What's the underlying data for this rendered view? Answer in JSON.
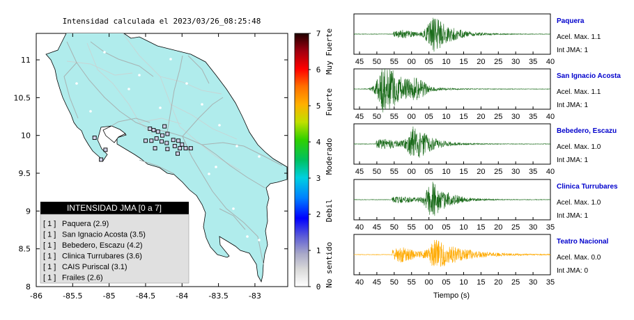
{
  "map": {
    "title": "Intensidad calculada el 2023/03/26_08:25:48",
    "xlim": [
      -86,
      -82.55
    ],
    "ylim": [
      8,
      11.35
    ],
    "xticks": [
      "-86",
      "-85.5",
      "-85",
      "-84.5",
      "-84",
      "-83.5",
      "-83"
    ],
    "yticks": [
      "8",
      "8.5",
      "9",
      "9.5",
      "10",
      "10.5",
      "11"
    ],
    "land_color": "#b0ecec",
    "legend": {
      "header": "INTENSIDAD JMA [0 a 7]",
      "items": [
        {
          "intensity": "[ 1 ]",
          "label": "Paquera (2.9)"
        },
        {
          "intensity": "[ 1 ]",
          "label": "San Ignacio Acosta (3.5)"
        },
        {
          "intensity": "[ 1 ]",
          "label": "Bebedero, Escazu (4.2)"
        },
        {
          "intensity": "[ 1 ]",
          "label": "Clinica Turrubares (3.6)"
        },
        {
          "intensity": "[ 1 ]",
          "label": "CAIS Puriscal (3.1)"
        },
        {
          "intensity": "[ 1 ]",
          "label": "Frailes (2.6)"
        }
      ]
    },
    "stations": [
      {
        "lon": -84.44,
        "lat": 10.09
      },
      {
        "lon": -84.39,
        "lat": 10.07
      },
      {
        "lon": -84.33,
        "lat": 10.05
      },
      {
        "lon": -84.24,
        "lat": 10.12
      },
      {
        "lon": -84.2,
        "lat": 10.02
      },
      {
        "lon": -84.27,
        "lat": 10.0
      },
      {
        "lon": -84.5,
        "lat": 9.93
      },
      {
        "lon": -84.42,
        "lat": 9.93
      },
      {
        "lon": -84.35,
        "lat": 9.96
      },
      {
        "lon": -84.28,
        "lat": 9.92
      },
      {
        "lon": -84.21,
        "lat": 9.9
      },
      {
        "lon": -84.12,
        "lat": 9.94
      },
      {
        "lon": -84.05,
        "lat": 9.93
      },
      {
        "lon": -84.0,
        "lat": 9.88
      },
      {
        "lon": -84.1,
        "lat": 9.86
      },
      {
        "lon": -84.2,
        "lat": 9.82
      },
      {
        "lon": -84.03,
        "lat": 9.83
      },
      {
        "lon": -84.37,
        "lat": 9.83
      },
      {
        "lon": -83.95,
        "lat": 9.83
      },
      {
        "lon": -83.88,
        "lat": 9.83
      },
      {
        "lon": -84.06,
        "lat": 9.76
      },
      {
        "lon": -85.2,
        "lat": 9.97
      },
      {
        "lon": -85.05,
        "lat": 9.81
      },
      {
        "lon": -85.11,
        "lat": 9.68
      }
    ]
  },
  "colorbar": {
    "ticks": [
      "0",
      "1",
      "2",
      "3",
      "4",
      "5",
      "6",
      "7"
    ],
    "category_labels": [
      "No sentido",
      "Debil",
      "Moderado",
      "Fuerte",
      "Muy Fuerte"
    ]
  },
  "waveforms": {
    "xlabel": "Tiempo (s)",
    "panels": [
      {
        "station": "Paquera",
        "acel": "Acel. Max. 1.1",
        "int": "Int JMA: 1",
        "color": "#1a6b1a",
        "ticks": [
          "45",
          "50",
          "55",
          "00",
          "05",
          "10",
          "15",
          "20",
          "25",
          "30",
          "35",
          "40"
        ],
        "start": 41.5,
        "onset": 54,
        "peak": 67,
        "decay": 5.5,
        "peak_amp": 0.95,
        "pre_amp": 0.22
      },
      {
        "station": "San Ignacio Acosta",
        "acel": "Acel. Max. 1.1",
        "int": "Int JMA: 1",
        "color": "#1a6b1a",
        "ticks": [
          "45",
          "50",
          "55",
          "00",
          "05",
          "10",
          "15",
          "20",
          "25",
          "30",
          "35",
          "40"
        ],
        "start": 41.5,
        "onset": 50,
        "peak": 50.8,
        "decay": 5,
        "peak_amp": 0.95,
        "pre_amp": 0.55,
        "second": 61.5
      },
      {
        "station": "Bebedero, Escazu",
        "acel": "Acel. Max. 1.0",
        "int": "Int JMA: 1",
        "color": "#1a6b1a",
        "ticks": [
          "45",
          "50",
          "55",
          "00",
          "05",
          "10",
          "15",
          "20",
          "25",
          "30",
          "35",
          "40"
        ],
        "start": 42,
        "onset": 49,
        "peak": 61.5,
        "decay": 5,
        "peak_amp": 0.95,
        "pre_amp": 0.3
      },
      {
        "station": "Clinica Turrubares",
        "acel": "Acel. Max. 1.0",
        "int": "Int JMA: 1",
        "color": "#1a6b1a",
        "ticks": [
          "40",
          "45",
          "50",
          "55",
          "00",
          "05",
          "10",
          "15",
          "20",
          "25",
          "30",
          "35"
        ],
        "start": 38,
        "onset": 50,
        "peak": 63,
        "decay": 5,
        "peak_amp": 0.95,
        "pre_amp": 0.2
      },
      {
        "station": "Teatro Nacional",
        "acel": "Acel. Max. 0.0",
        "int": "Int JMA: 0",
        "color": "#ffaa00",
        "ticks": [
          "40",
          "45",
          "50",
          "55",
          "00",
          "05",
          "10",
          "15",
          "20",
          "25",
          "30",
          "35"
        ],
        "start": 38,
        "onset": 50,
        "peak": 64,
        "decay": 9,
        "peak_amp": 0.75,
        "pre_amp": 0.45
      }
    ]
  }
}
